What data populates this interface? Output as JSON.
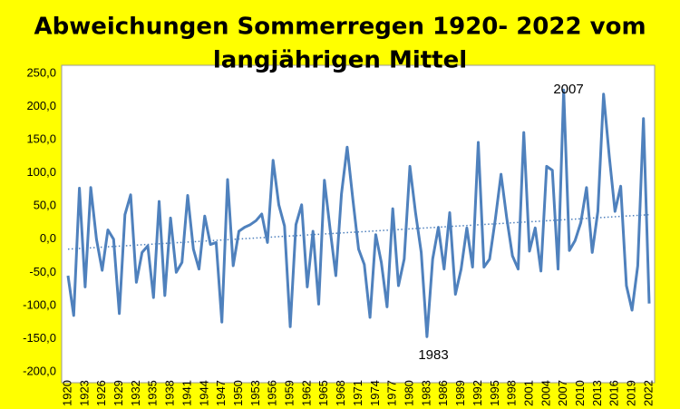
{
  "chart_data": {
    "type": "line",
    "title": [
      "Abweichungen Sommerregen 1920- 2022 vom",
      "langjährigen Mittel"
    ],
    "categories": [
      "1920",
      null,
      null,
      "1923",
      null,
      null,
      "1926",
      null,
      null,
      "1929",
      null,
      null,
      "1932",
      null,
      null,
      "1935",
      null,
      null,
      "1938",
      null,
      null,
      "1941",
      null,
      null,
      "1944",
      null,
      null,
      "1947",
      null,
      null,
      "1950",
      null,
      null,
      "1953",
      null,
      null,
      "1956",
      null,
      null,
      "1959",
      null,
      null,
      "1962",
      null,
      null,
      "1965",
      null,
      null,
      "1968",
      null,
      null,
      "1971",
      null,
      null,
      "1974",
      null,
      null,
      "1977",
      null,
      null,
      "1980",
      null,
      null,
      "1983",
      null,
      null,
      "1986",
      null,
      null,
      "1989",
      null,
      null,
      "1992",
      null,
      null,
      "1995",
      null,
      null,
      "1998",
      null,
      null,
      "2001",
      null,
      null,
      "2004",
      null,
      null,
      "2007",
      null,
      null,
      "2010",
      null,
      null,
      "2013",
      null,
      null,
      "2016",
      null,
      null,
      "2019",
      null,
      null,
      "2022"
    ],
    "series": [
      {
        "color": "#4f81bd",
        "values": [
          -55,
          -115,
          77,
          -72,
          78,
          0,
          -47,
          14,
          0,
          -112,
          37,
          67,
          -65,
          -20,
          -10,
          -88,
          57,
          -85,
          32,
          -50,
          -35,
          66,
          -15,
          -45,
          35,
          -8,
          -5,
          -125,
          90,
          -40,
          12,
          18,
          22,
          28,
          38,
          -5,
          119,
          52,
          20,
          -132,
          22,
          52,
          -72,
          12,
          -98,
          89,
          15,
          -55,
          68,
          139,
          60,
          -15,
          -38,
          -118,
          7,
          -35,
          -102,
          46,
          -70,
          -30,
          110,
          40,
          -20,
          -147,
          -30,
          18,
          -45,
          40,
          -83,
          -45,
          17,
          -42,
          146,
          -42,
          -30,
          30,
          98,
          32,
          -25,
          -45,
          161,
          -18,
          17,
          -48,
          110,
          104,
          -45,
          225,
          -17,
          -2,
          25,
          78,
          -20,
          42,
          219,
          125,
          42,
          80,
          -70,
          -107,
          -40,
          182,
          -97
        ]
      }
    ],
    "trend": [
      -15,
      37
    ],
    "annotations": [
      "2007",
      "1983"
    ],
    "ylim": [
      -200,
      250
    ],
    "yticks": [
      {
        "value": -200,
        "label": "-200,0"
      },
      {
        "value": -150,
        "label": "-150,0"
      },
      {
        "value": -100,
        "label": "-100,0"
      },
      {
        "value": -50,
        "label": "-50,0"
      },
      {
        "value": 0,
        "label": "0,0"
      },
      {
        "value": 50,
        "label": "50,0"
      },
      {
        "value": 100,
        "label": "100,0"
      },
      {
        "value": 150,
        "label": "150,0"
      },
      {
        "value": 200,
        "label": "200,0"
      },
      {
        "value": 250,
        "label": "250,0"
      }
    ],
    "grid": false
  }
}
